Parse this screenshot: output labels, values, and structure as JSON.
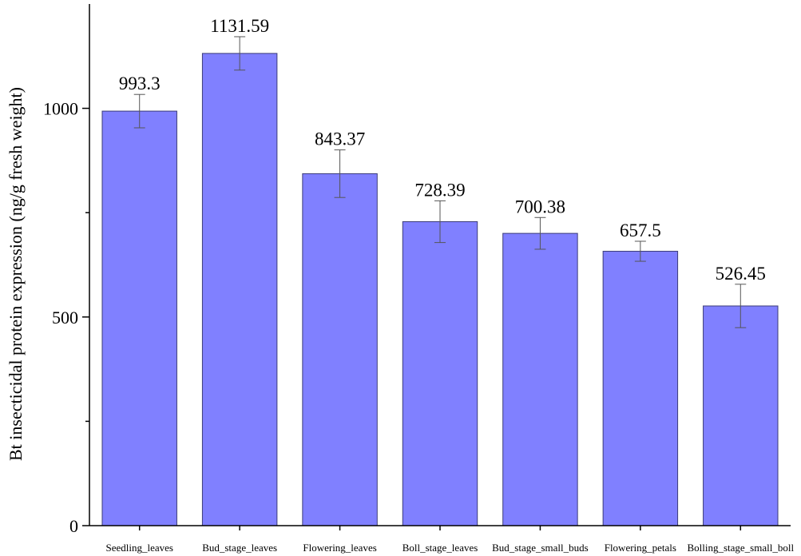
{
  "chart_data": {
    "type": "bar",
    "title": "",
    "xlabel": "",
    "ylabel": "Bt insecticidal protein expression (ng/g fresh weight)",
    "categories": [
      "Seedling_leaves",
      "Bud_stage_leaves",
      "Flowering_leaves",
      "Boll_stage_leaves",
      "Bud_stage_small_buds",
      "Flowering_petals",
      "Bolling_stage_small_boll"
    ],
    "values": [
      993.3,
      1131.59,
      843.37,
      728.39,
      700.38,
      657.5,
      526.45
    ],
    "value_labels": [
      "993.3",
      "1131.59",
      "843.37",
      "728.39",
      "700.38",
      "657.5",
      "526.45"
    ],
    "error": [
      40,
      40,
      57,
      50,
      38,
      24,
      52
    ],
    "ylim": [
      0,
      1250
    ],
    "yticks": [
      0,
      500,
      1000
    ],
    "ytick_labels": [
      "0",
      "500",
      "1000"
    ],
    "grid": false,
    "colors": {
      "bar": "#8080ff",
      "bar_edge": "#3c3c78",
      "axis": "#000000"
    }
  }
}
